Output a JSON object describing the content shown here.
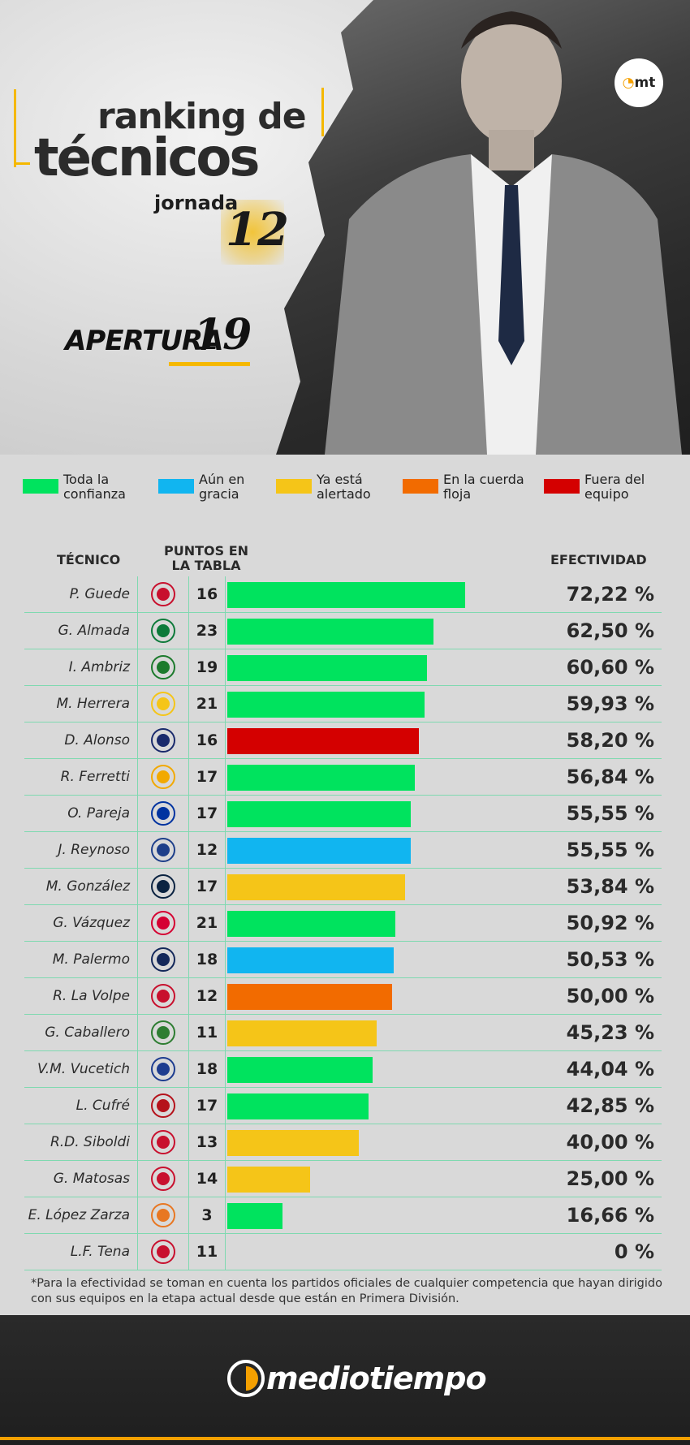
{
  "header": {
    "title_line1": "ranking de",
    "title_line2": "técnicos",
    "jornada_label": "jornada",
    "jornada_number": "12",
    "tournament_word": "APERTURA",
    "tournament_number": "19",
    "badge_text": "mt"
  },
  "legend": [
    {
      "label": "Toda la confianza",
      "color": "#00e35e"
    },
    {
      "label": "Aún en gracia",
      "color": "#11b5f0"
    },
    {
      "label": "Ya está alertado",
      "color": "#f5c518"
    },
    {
      "label": "En la cuerda floja",
      "color": "#f26b00"
    },
    {
      "label": "Fuera del equipo",
      "color": "#d40000"
    }
  ],
  "chart_data": {
    "type": "bar",
    "orientation": "horizontal",
    "columns": {
      "coach": "TÉCNICO",
      "points": "PUNTOS EN LA TABLA",
      "effectiveness": "EFECTIVIDAD"
    },
    "xlim": [
      0,
      100
    ],
    "rows": [
      {
        "coach": "P. Guede",
        "points": "16",
        "value": 72.22,
        "label": "72,22 %",
        "status": "Toda la confianza",
        "color": "#00e35e",
        "crest": "#c8102e"
      },
      {
        "coach": "G. Almada",
        "points": "23",
        "value": 62.5,
        "label": "62,50 %",
        "status": "Toda la confianza",
        "color": "#00e35e",
        "crest": "#0d7a3a"
      },
      {
        "coach": "I. Ambriz",
        "points": "19",
        "value": 60.6,
        "label": "60,60 %",
        "status": "Toda la confianza",
        "color": "#00e35e",
        "crest": "#1c7a2c"
      },
      {
        "coach": "M. Herrera",
        "points": "21",
        "value": 59.93,
        "label": "59,93 %",
        "status": "Toda la confianza",
        "color": "#00e35e",
        "crest": "#f5c518"
      },
      {
        "coach": "D. Alonso",
        "points": "16",
        "value": 58.2,
        "label": "58,20 %",
        "status": "Fuera del equipo",
        "color": "#d40000",
        "crest": "#1a2a6c"
      },
      {
        "coach": "R. Ferretti",
        "points": "17",
        "value": 56.84,
        "label": "56,84 %",
        "status": "Toda la confianza",
        "color": "#00e35e",
        "crest": "#f2a900"
      },
      {
        "coach": "O. Pareja",
        "points": "17",
        "value": 55.55,
        "label": "55,55 %",
        "status": "Toda la confianza",
        "color": "#00e35e",
        "crest": "#0033a0"
      },
      {
        "coach": "J. Reynoso",
        "points": "12",
        "value": 55.55,
        "label": "55,55 %",
        "status": "Aún en gracia",
        "color": "#11b5f0",
        "crest": "#1e3f8a"
      },
      {
        "coach": "M. González",
        "points": "17",
        "value": 53.84,
        "label": "53,84 %",
        "status": "Ya está alertado",
        "color": "#f5c518",
        "crest": "#0b2341"
      },
      {
        "coach": "G. Vázquez",
        "points": "21",
        "value": 50.92,
        "label": "50,92 %",
        "status": "Toda la confianza",
        "color": "#00e35e",
        "crest": "#d50032"
      },
      {
        "coach": "M. Palermo",
        "points": "18",
        "value": 50.53,
        "label": "50,53 %",
        "status": "Aún en gracia",
        "color": "#11b5f0",
        "crest": "#14285a"
      },
      {
        "coach": "R. La Volpe",
        "points": "12",
        "value": 50.0,
        "label": "50,00 %",
        "status": "En la cuerda floja",
        "color": "#f26b00",
        "crest": "#c8102e"
      },
      {
        "coach": "G. Caballero",
        "points": "11",
        "value": 45.23,
        "label": "45,23 %",
        "status": "Ya está alertado",
        "color": "#f5c518",
        "crest": "#2e7d32"
      },
      {
        "coach": "V.M. Vucetich",
        "points": "18",
        "value": 44.04,
        "label": "44,04 %",
        "status": "Toda la confianza",
        "color": "#00e35e",
        "crest": "#1d3c8f"
      },
      {
        "coach": "L. Cufré",
        "points": "17",
        "value": 42.85,
        "label": "42,85 %",
        "status": "Toda la confianza",
        "color": "#00e35e",
        "crest": "#b5121b"
      },
      {
        "coach": "R.D. Siboldi",
        "points": "13",
        "value": 40.0,
        "label": "40,00 %",
        "status": "Ya está alertado",
        "color": "#f5c518",
        "crest": "#c8102e"
      },
      {
        "coach": "G. Matosas",
        "points": "14",
        "value": 25.0,
        "label": "25,00 %",
        "status": "Ya está alertado",
        "color": "#f5c518",
        "crest": "#c8102e"
      },
      {
        "coach": "E. López Zarza",
        "points": "3",
        "value": 16.66,
        "label": "16,66 %",
        "status": "Toda la confianza",
        "color": "#00e35e",
        "crest": "#e87722"
      },
      {
        "coach": "L.F. Tena",
        "points": "11",
        "value": 0,
        "label": "0 %",
        "status": "",
        "color": "#00e35e",
        "crest": "#c8102e"
      }
    ]
  },
  "footnote": "*Para la efectividad se toman en cuenta los partidos oficiales de cualquier competencia que hayan dirigido con sus equipos en la etapa actual desde que están en Primera División.",
  "footer": {
    "brand": "mediotiempo"
  }
}
